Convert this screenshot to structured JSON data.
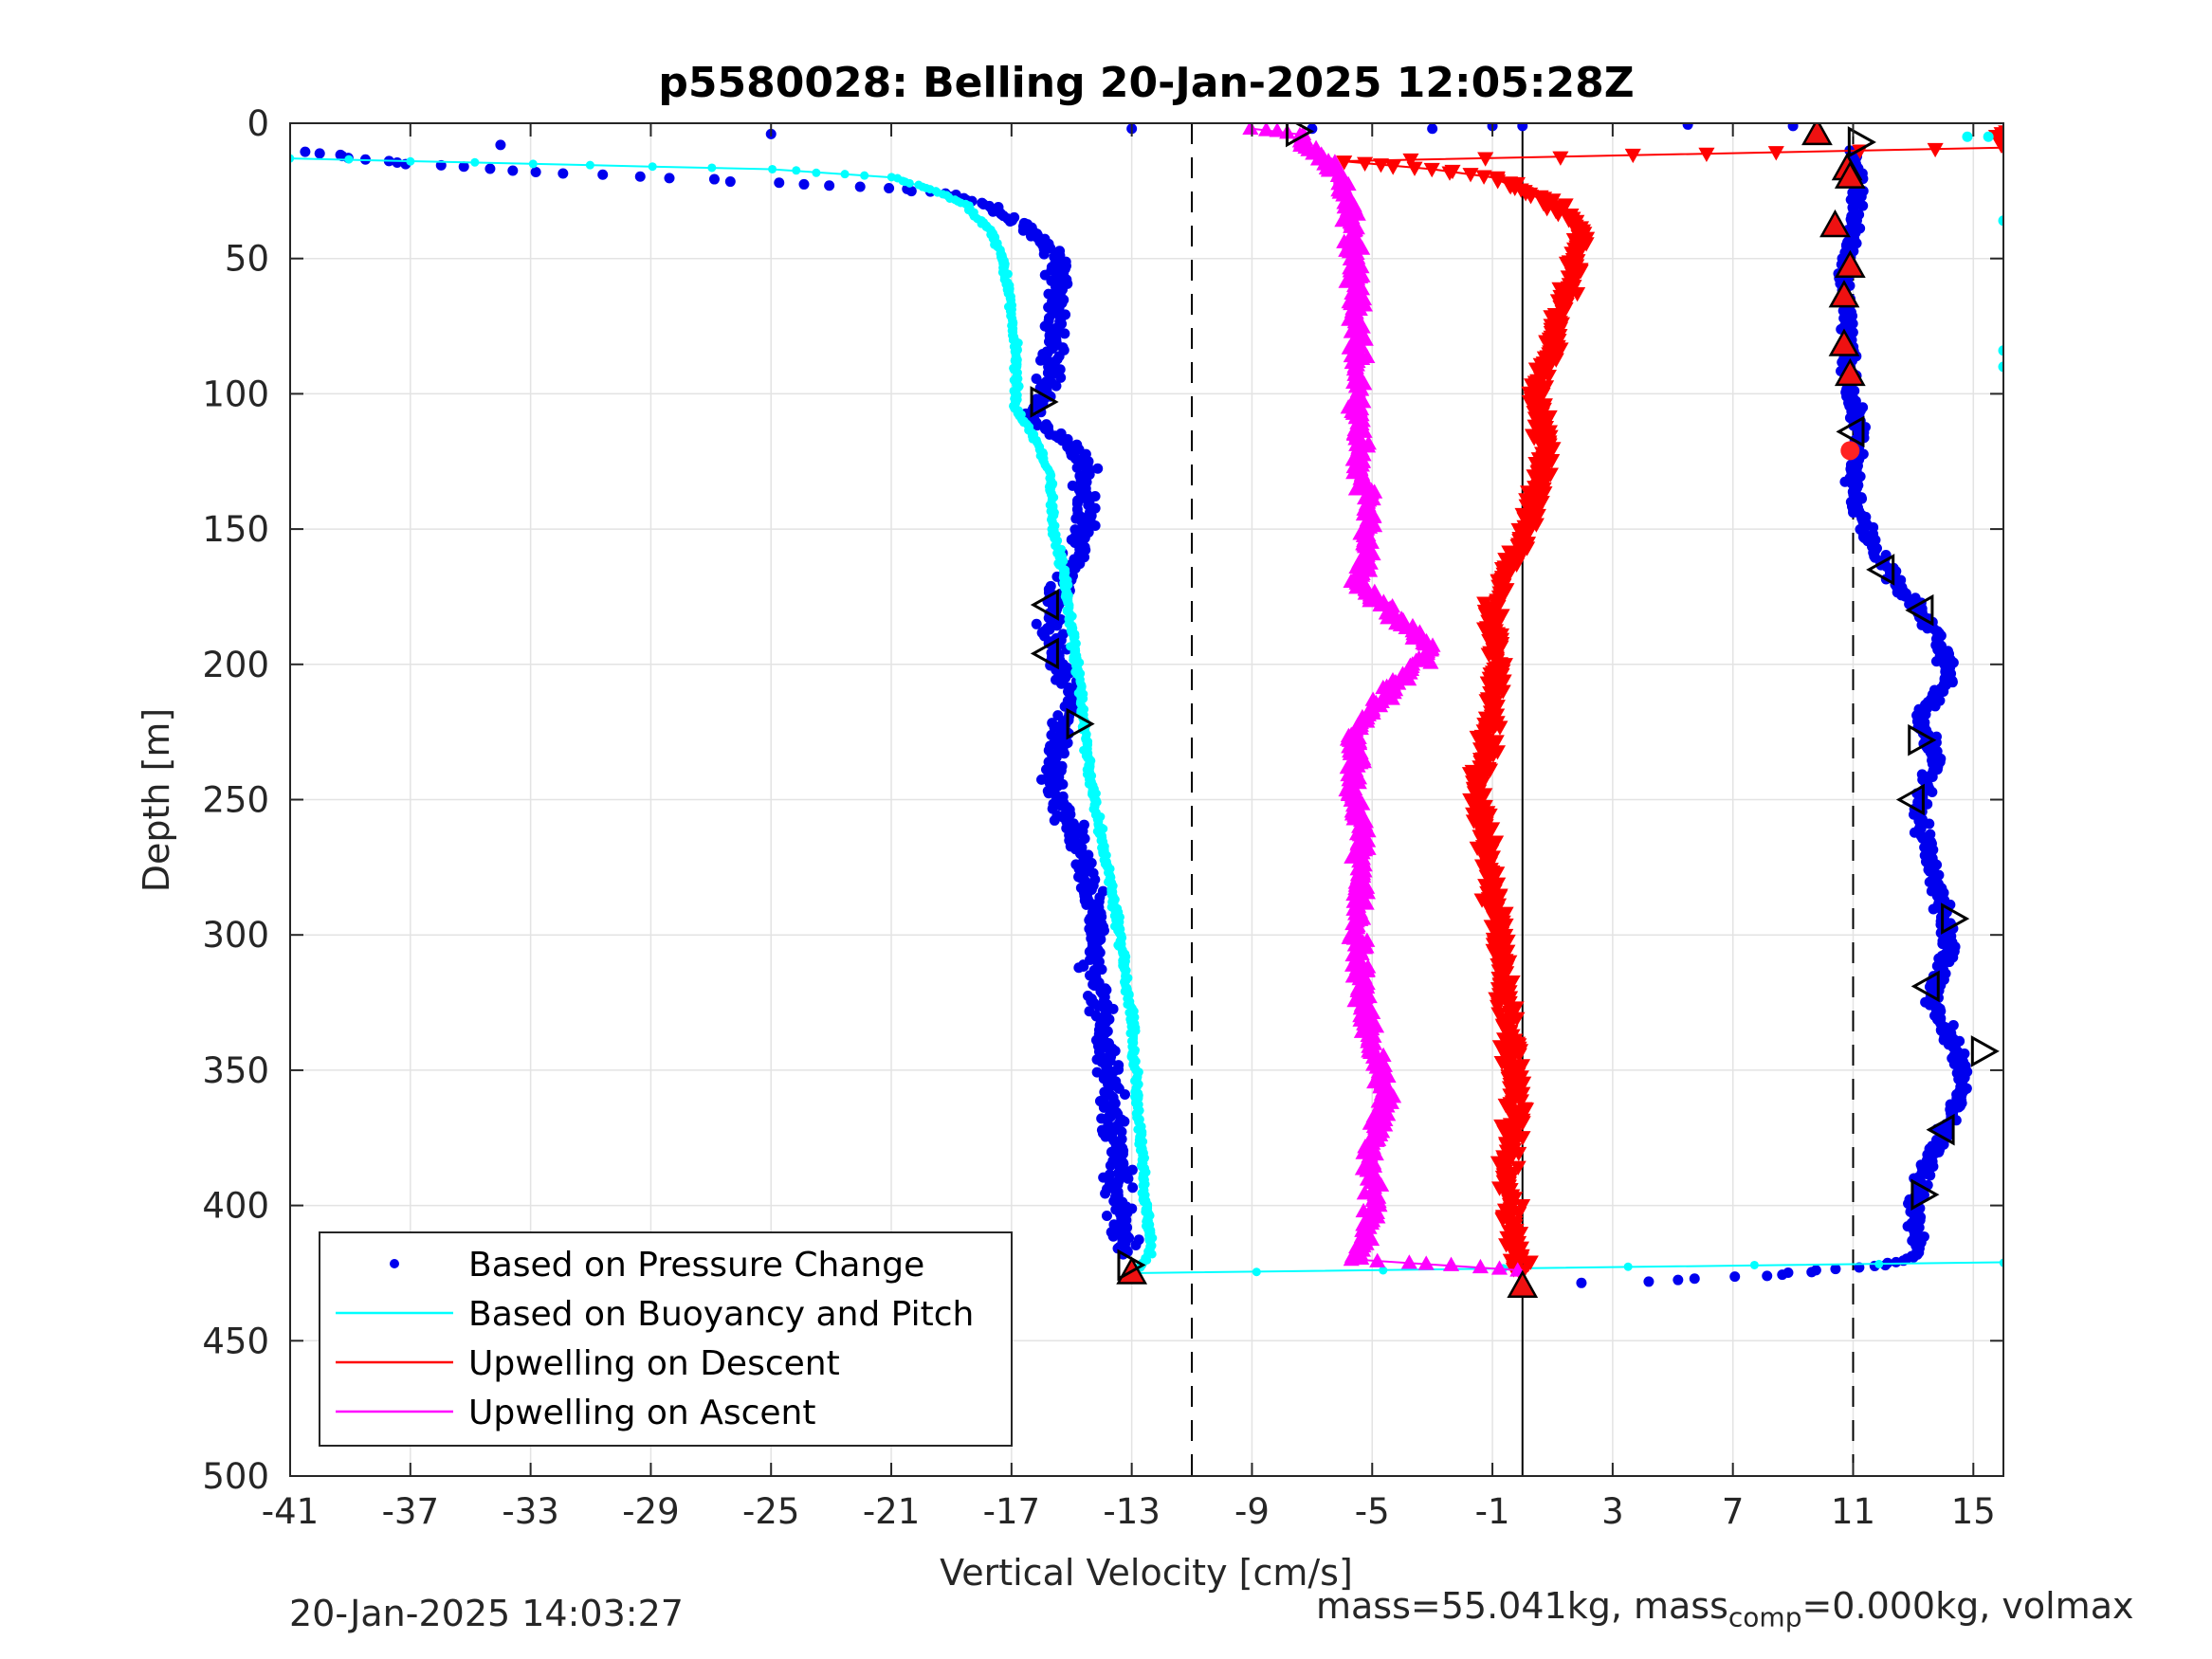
{
  "figure": {
    "footer_date": "20-Jan-2025 14:03:27",
    "footer_mass_prefix": "mass=55.041kg, mass",
    "footer_mass_sub": "comp",
    "footer_mass_suffix": "=0.000kg, volmax"
  },
  "colors": {
    "pressure": "#0000ee",
    "buoyancy": "#00ffff",
    "descent": "#ff0000",
    "ascent": "#ff00ff",
    "grid": "#e3e3e3",
    "axis": "#262626"
  },
  "chart_data": {
    "type": "scatter",
    "title": "p5580028: Belling 20-Jan-2025 12:05:28Z",
    "xlabel": "Vertical Velocity [cm/s]",
    "ylabel": "Depth [m]",
    "xlim": [
      -41,
      16
    ],
    "ylim": [
      0,
      500
    ],
    "y_reversed": true,
    "grid": true,
    "legend_position": "bottom-left",
    "xticks": [
      -41,
      -37,
      -33,
      -29,
      -25,
      -21,
      -17,
      -13,
      -9,
      -5,
      -1,
      3,
      7,
      11,
      15
    ],
    "yticks": [
      0,
      50,
      100,
      150,
      200,
      250,
      300,
      350,
      400,
      450,
      500
    ],
    "reference_lines": [
      {
        "x": -11,
        "style": "dashed"
      },
      {
        "x": 0,
        "style": "solid"
      },
      {
        "x": 11,
        "style": "dashed"
      }
    ],
    "legend": [
      {
        "label": "Based on Pressure Change",
        "marker": "dot",
        "color_key": "pressure"
      },
      {
        "label": "Based on Buoyancy and Pitch",
        "marker": "line",
        "color_key": "buoyancy"
      },
      {
        "label": "Upwelling on Descent",
        "marker": "line",
        "color_key": "descent"
      },
      {
        "label": "Upwelling on Ascent",
        "marker": "line",
        "color_key": "ascent"
      }
    ],
    "series": [
      {
        "name": "Based on Pressure Change (descent)",
        "color_key": "pressure",
        "marker": "dot",
        "jitter": 0.6,
        "profile": [
          [
            -41,
            10
          ],
          [
            -37,
            15
          ],
          [
            -33,
            18
          ],
          [
            -25,
            22
          ],
          [
            -21,
            24
          ],
          [
            -19,
            26
          ],
          [
            -18,
            30
          ],
          [
            -16.5,
            38
          ],
          [
            -15.5,
            50
          ],
          [
            -15.6,
            80
          ],
          [
            -15.8,
            100
          ],
          [
            -16.4,
            108
          ],
          [
            -14.6,
            125
          ],
          [
            -14.6,
            150
          ],
          [
            -15.2,
            170
          ],
          [
            -15.8,
            185
          ],
          [
            -15.4,
            200
          ],
          [
            -14.9,
            210
          ],
          [
            -15.4,
            225
          ],
          [
            -15.6,
            245
          ],
          [
            -14.8,
            265
          ],
          [
            -14.2,
            290
          ],
          [
            -14.3,
            310
          ],
          [
            -13.9,
            340
          ],
          [
            -13.6,
            370
          ],
          [
            -13.4,
            400
          ],
          [
            -13.2,
            418
          ]
        ]
      },
      {
        "name": "Based on Pressure Change (ascent)",
        "color_key": "pressure",
        "marker": "dot",
        "jitter": 0.4,
        "profile": [
          [
            0,
            429
          ],
          [
            4,
            428
          ],
          [
            8,
            426
          ],
          [
            10,
            424
          ],
          [
            12,
            422
          ],
          [
            13.2,
            418
          ],
          [
            13,
            400
          ],
          [
            13.5,
            385
          ],
          [
            14.1,
            372
          ],
          [
            14.7,
            355
          ],
          [
            14.3,
            340
          ],
          [
            13.6,
            322
          ],
          [
            14.2,
            305
          ],
          [
            13.9,
            285
          ],
          [
            13.4,
            265
          ],
          [
            13.2,
            250
          ],
          [
            13.8,
            235
          ],
          [
            13.2,
            220
          ],
          [
            14.2,
            205
          ],
          [
            13.9,
            190
          ],
          [
            12.8,
            175
          ],
          [
            11.8,
            160
          ],
          [
            11.2,
            145
          ],
          [
            11,
            130
          ],
          [
            11.2,
            115
          ],
          [
            10.9,
            100
          ],
          [
            10.8,
            80
          ],
          [
            10.7,
            60
          ],
          [
            11,
            40
          ],
          [
            11.1,
            20
          ],
          [
            11,
            10
          ]
        ]
      },
      {
        "name": "Based on Buoyancy and Pitch",
        "color_key": "buoyancy",
        "marker": "line+dot",
        "jitter": 0.15,
        "profile": [
          [
            -41,
            13
          ],
          [
            -37,
            14
          ],
          [
            -33,
            15
          ],
          [
            -29,
            16
          ],
          [
            -25,
            17
          ],
          [
            -21,
            20
          ],
          [
            -19.5,
            25
          ],
          [
            -18.5,
            30
          ],
          [
            -17.7,
            40
          ],
          [
            -17.3,
            50
          ],
          [
            -17,
            70
          ],
          [
            -16.8,
            90
          ],
          [
            -16.9,
            105
          ],
          [
            -16.3,
            115
          ],
          [
            -15.7,
            130
          ],
          [
            -15.6,
            150
          ],
          [
            -15.2,
            170
          ],
          [
            -14.9,
            195
          ],
          [
            -14.7,
            210
          ],
          [
            -14.4,
            240
          ],
          [
            -13.9,
            270
          ],
          [
            -13.4,
            300
          ],
          [
            -13,
            330
          ],
          [
            -12.8,
            360
          ],
          [
            -12.6,
            390
          ],
          [
            -12.4,
            412
          ],
          [
            -12.4,
            418
          ],
          [
            -12.8,
            423
          ],
          [
            -13,
            425
          ],
          [
            16,
            421
          ]
        ]
      },
      {
        "name": "Upwelling on Descent",
        "color_key": "descent",
        "marker": "triangle-down",
        "jitter": 0.5,
        "profile": [
          [
            16,
            3
          ],
          [
            16,
            9
          ],
          [
            -6,
            14
          ],
          [
            -3,
            17
          ],
          [
            -1,
            20
          ],
          [
            0,
            25
          ],
          [
            1,
            30
          ],
          [
            2,
            40
          ],
          [
            1.5,
            60
          ],
          [
            1,
            80
          ],
          [
            0.5,
            100
          ],
          [
            0.8,
            120
          ],
          [
            0.5,
            140
          ],
          [
            -0.5,
            165
          ],
          [
            -1,
            185
          ],
          [
            -0.8,
            200
          ],
          [
            -1.2,
            230
          ],
          [
            -1.5,
            250
          ],
          [
            -1.2,
            270
          ],
          [
            -0.8,
            300
          ],
          [
            -0.5,
            330
          ],
          [
            -0.2,
            360
          ],
          [
            -0.5,
            390
          ],
          [
            -0.3,
            410
          ],
          [
            0,
            425
          ]
        ]
      },
      {
        "name": "Upwelling on Ascent",
        "color_key": "ascent",
        "marker": "triangle-up",
        "jitter": 0.4,
        "profile": [
          [
            -9,
            2
          ],
          [
            -7.5,
            4
          ],
          [
            -7,
            10
          ],
          [
            -6,
            20
          ],
          [
            -5.6,
            40
          ],
          [
            -5.5,
            80
          ],
          [
            -5.4,
            120
          ],
          [
            -5.1,
            150
          ],
          [
            -5.5,
            170
          ],
          [
            -4.5,
            180
          ],
          [
            -3,
            195
          ],
          [
            -4.5,
            210
          ],
          [
            -5.5,
            225
          ],
          [
            -5.7,
            245
          ],
          [
            -5.3,
            260
          ],
          [
            -5.5,
            300
          ],
          [
            -5.2,
            330
          ],
          [
            -4.5,
            360
          ],
          [
            -5.1,
            380
          ],
          [
            -4.9,
            400
          ],
          [
            -5.5,
            420
          ],
          [
            0,
            424
          ]
        ]
      }
    ],
    "markers": {
      "open_triangles": [
        {
          "x": -7.5,
          "y": 3,
          "dir": "right"
        },
        {
          "x": -16,
          "y": 103,
          "dir": "right"
        },
        {
          "x": -15.8,
          "y": 178,
          "dir": "left"
        },
        {
          "x": -15.8,
          "y": 196,
          "dir": "left"
        },
        {
          "x": -14.8,
          "y": 222,
          "dir": "right"
        },
        {
          "x": -13.1,
          "y": 422,
          "dir": "right"
        },
        {
          "x": 11.2,
          "y": 7,
          "dir": "right"
        },
        {
          "x": 11,
          "y": 114,
          "dir": "left"
        },
        {
          "x": 12,
          "y": 165,
          "dir": "left"
        },
        {
          "x": 13.3,
          "y": 180,
          "dir": "left"
        },
        {
          "x": 13.2,
          "y": 228,
          "dir": "right"
        },
        {
          "x": 13,
          "y": 250,
          "dir": "left"
        },
        {
          "x": 14.3,
          "y": 294,
          "dir": "right"
        },
        {
          "x": 13.5,
          "y": 319,
          "dir": "left"
        },
        {
          "x": 15.3,
          "y": 343,
          "dir": "right"
        },
        {
          "x": 14,
          "y": 372,
          "dir": "left"
        },
        {
          "x": 13.3,
          "y": 396,
          "dir": "right"
        }
      ],
      "filled_triangles": [
        {
          "x": 9.8,
          "y": 4
        },
        {
          "x": 10.8,
          "y": 17
        },
        {
          "x": 10.9,
          "y": 20
        },
        {
          "x": 10.4,
          "y": 38
        },
        {
          "x": 10.9,
          "y": 53
        },
        {
          "x": 10.7,
          "y": 64
        },
        {
          "x": 10.7,
          "y": 82
        },
        {
          "x": 10.9,
          "y": 93
        },
        {
          "x": -13,
          "y": 425
        },
        {
          "x": 0,
          "y": 430
        }
      ],
      "red_dot": {
        "x": 10.9,
        "y": 121
      },
      "cyan_outliers": [
        [
          15.5,
          5
        ],
        [
          16,
          36
        ],
        [
          16,
          84
        ],
        [
          16,
          90
        ],
        [
          14.8,
          5
        ]
      ]
    }
  }
}
